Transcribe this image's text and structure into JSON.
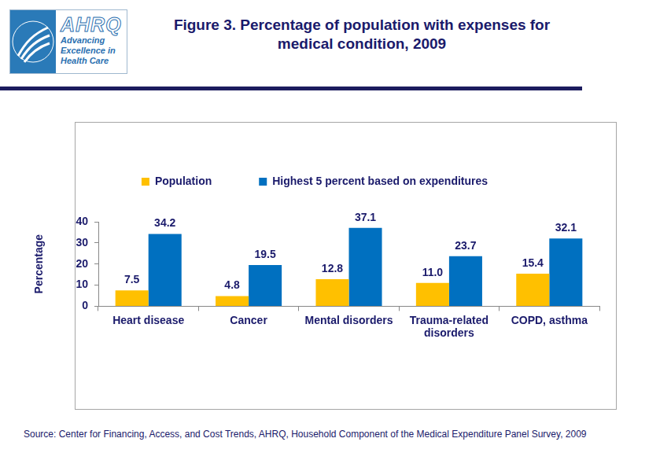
{
  "chart_data": {
    "type": "bar",
    "title": "Figure 3. Percentage of population with expenses for medical condition, 2009",
    "y_label": "Percentage",
    "categories": [
      "Heart disease",
      "Cancer",
      "Mental disorders",
      "Trauma-related disorders",
      "COPD, asthma"
    ],
    "series": [
      {
        "name": "Population",
        "color": "#FFC000",
        "values": [
          7.5,
          4.8,
          12.8,
          11.0,
          15.4
        ],
        "value_labels": [
          "7.5",
          "4.8",
          "12.8",
          "11.0",
          "15.4"
        ]
      },
      {
        "name": "Highest 5 percent based on expenditures",
        "color": "#0070C0",
        "values": [
          34.2,
          19.5,
          37.1,
          23.7,
          32.1
        ],
        "value_labels": [
          "34.2",
          "19.5",
          "37.1",
          "23.7",
          "32.1"
        ]
      }
    ],
    "ylim": [
      0,
      40
    ],
    "yticks": [
      0,
      10,
      20,
      30,
      40
    ],
    "grid": false,
    "legend": "top",
    "data_labels": true,
    "source": "Source: Center for Financing, Access, and Cost Trends, AHRQ, Household Component of the Medical Expenditure Panel Survey, 2009",
    "logo": {
      "name": "AHRQ",
      "tagline": "Advancing Excellence in Health Care"
    }
  }
}
